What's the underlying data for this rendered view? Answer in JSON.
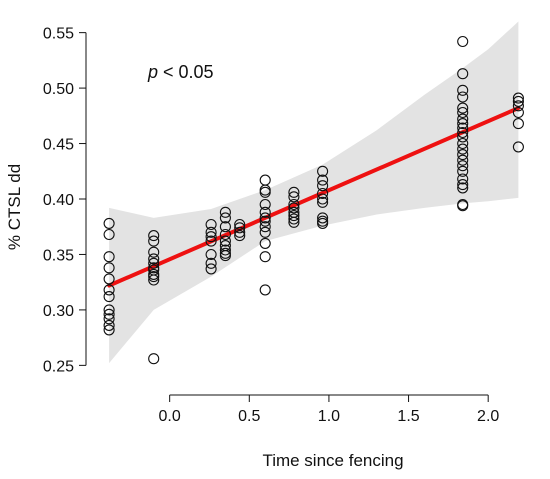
{
  "chart_data": {
    "type": "scatter",
    "xlabel": "Time since fencing",
    "ylabel": "% CTSL dd",
    "annotation": {
      "italic": "p",
      "rest": " < 0.05"
    },
    "xlim": [
      -0.45,
      2.25
    ],
    "ylim": [
      0.235,
      0.565
    ],
    "xticks": [
      0.0,
      0.5,
      1.0,
      1.5,
      2.0
    ],
    "xtick_labels": [
      "0.0",
      "0.5",
      "1.0",
      "1.5",
      "2.0"
    ],
    "yticks": [
      0.25,
      0.3,
      0.35,
      0.4,
      0.45,
      0.5,
      0.55
    ],
    "ytick_labels": [
      "0.25",
      "0.30",
      "0.35",
      "0.40",
      "0.45",
      "0.50",
      "0.55"
    ],
    "grid": false,
    "colors": {
      "fit_line": "#ee1111",
      "confidence_band": "#e3e3e3",
      "point_stroke": "#111111"
    },
    "points": {
      "x": [
        -0.38,
        -0.38,
        -0.38,
        -0.38,
        -0.38,
        -0.38,
        -0.38,
        -0.38,
        -0.38,
        -0.38,
        -0.38,
        -0.38,
        -0.1,
        -0.1,
        -0.1,
        -0.1,
        -0.1,
        -0.1,
        -0.1,
        -0.1,
        -0.1,
        -0.1,
        -0.1,
        0.26,
        0.26,
        0.26,
        0.26,
        0.26,
        0.26,
        0.26,
        0.35,
        0.35,
        0.35,
        0.35,
        0.35,
        0.35,
        0.35,
        0.35,
        0.35,
        0.44,
        0.44,
        0.44,
        0.44,
        0.6,
        0.6,
        0.6,
        0.6,
        0.6,
        0.6,
        0.6,
        0.6,
        0.6,
        0.6,
        0.6,
        0.6,
        0.78,
        0.78,
        0.78,
        0.78,
        0.78,
        0.78,
        0.78,
        0.78,
        0.96,
        0.96,
        0.96,
        0.96,
        0.96,
        0.96,
        0.96,
        0.96,
        0.96,
        1.84,
        1.84,
        1.84,
        1.84,
        1.84,
        1.84,
        1.84,
        1.84,
        1.84,
        1.84,
        1.84,
        1.84,
        1.84,
        1.84,
        1.84,
        1.84,
        1.84,
        1.84,
        1.84,
        1.84,
        1.84,
        1.84,
        2.19,
        2.19,
        2.19,
        2.19,
        2.19,
        2.19
      ],
      "y": [
        0.378,
        0.368,
        0.348,
        0.338,
        0.328,
        0.318,
        0.312,
        0.3,
        0.296,
        0.292,
        0.286,
        0.282,
        0.367,
        0.362,
        0.352,
        0.346,
        0.342,
        0.338,
        0.336,
        0.332,
        0.33,
        0.327,
        0.256,
        0.377,
        0.37,
        0.366,
        0.362,
        0.35,
        0.342,
        0.337,
        0.388,
        0.383,
        0.375,
        0.368,
        0.362,
        0.358,
        0.354,
        0.351,
        0.349,
        0.377,
        0.374,
        0.37,
        0.367,
        0.417,
        0.408,
        0.406,
        0.395,
        0.388,
        0.383,
        0.38,
        0.375,
        0.37,
        0.36,
        0.348,
        0.318,
        0.406,
        0.402,
        0.395,
        0.392,
        0.388,
        0.385,
        0.382,
        0.379,
        0.425,
        0.417,
        0.412,
        0.405,
        0.4,
        0.397,
        0.383,
        0.38,
        0.378,
        0.542,
        0.513,
        0.498,
        0.492,
        0.482,
        0.478,
        0.472,
        0.468,
        0.464,
        0.46,
        0.456,
        0.45,
        0.445,
        0.44,
        0.435,
        0.43,
        0.425,
        0.418,
        0.413,
        0.41,
        0.395,
        0.394,
        0.491,
        0.488,
        0.484,
        0.478,
        0.468,
        0.447
      ]
    },
    "fit_line": {
      "x": [
        -0.38,
        2.19
      ],
      "y": [
        0.322,
        0.482
      ]
    },
    "confidence_band": {
      "x": [
        -0.38,
        -0.1,
        0.26,
        0.6,
        0.96,
        1.3,
        1.6,
        1.84,
        2.0,
        2.19
      ],
      "lower": [
        0.252,
        0.3,
        0.33,
        0.362,
        0.376,
        0.386,
        0.392,
        0.396,
        0.398,
        0.401
      ],
      "upper": [
        0.392,
        0.383,
        0.391,
        0.408,
        0.431,
        0.462,
        0.494,
        0.518,
        0.535,
        0.56
      ]
    }
  }
}
